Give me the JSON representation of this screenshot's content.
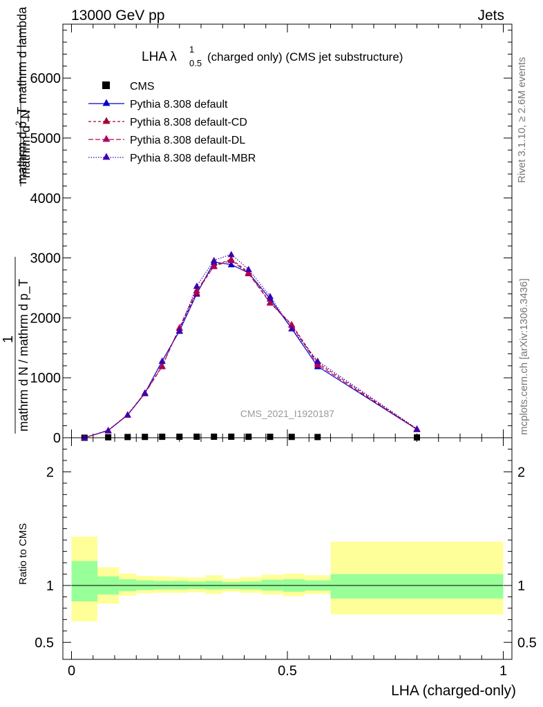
{
  "header": {
    "left": "13000 GeV pp",
    "right": "Jets"
  },
  "side": {
    "rivet": "Rivet 3.1.10, ≥ 2.6M events",
    "mcplots": "mcplots.cern.ch [arXiv:1306.3436]"
  },
  "plot_title": {
    "main": "LHA λ",
    "sup": "1",
    "sub": "0.5",
    "rest": "(charged only) (CMS jet substructure)"
  },
  "watermark": "CMS_2021_I1920187",
  "ylabel_main": {
    "num_line1": "mathrm d",
    "num_sup": "2",
    "num_line1b": "N",
    "num_line2": "mathrm d p_T mathrm d lambda",
    "one": "1",
    "den": "mathrm d N / mathrm d p_T"
  },
  "ylabel_ratio": "Ratio to CMS",
  "xlabel": "LHA (charged-only)",
  "legend": [
    {
      "label": "CMS",
      "marker": "square",
      "color": "#000000",
      "dash": ""
    },
    {
      "label": "Pythia 8.308 default",
      "marker": "triangle",
      "color": "#0000cc",
      "dash": ""
    },
    {
      "label": "Pythia 8.308 default-CD",
      "marker": "triangle",
      "color": "#a3002f",
      "dash": "4,3"
    },
    {
      "label": "Pythia 8.308 default-DL",
      "marker": "triangle",
      "color": "#b0005a",
      "dash": "7,3"
    },
    {
      "label": "Pythia 8.308 default-MBR",
      "marker": "triangle",
      "color": "#3c00b0",
      "dash": "1.5,2"
    }
  ],
  "chart_data": [
    {
      "type": "line",
      "panel": "main",
      "xlim": [
        -0.02,
        1.02
      ],
      "ylim": [
        0,
        6900
      ],
      "yticks": [
        0,
        1000,
        2000,
        3000,
        4000,
        5000,
        6000
      ],
      "ytick_labels": [
        "0",
        "1000",
        "2000",
        "3000",
        "4000",
        "5000",
        "6000"
      ],
      "x": [
        0.03,
        0.085,
        0.13,
        0.17,
        0.21,
        0.25,
        0.29,
        0.33,
        0.37,
        0.41,
        0.46,
        0.51,
        0.57,
        0.8
      ],
      "x_edges": [
        0.0,
        0.06,
        0.11,
        0.15,
        0.19,
        0.23,
        0.27,
        0.31,
        0.35,
        0.39,
        0.44,
        0.49,
        0.54,
        0.6,
        1.0
      ],
      "series": [
        {
          "name": "CMS",
          "values": [
            0,
            8,
            12,
            14,
            16,
            16,
            17,
            17,
            17,
            16,
            15,
            14,
            12,
            5
          ]
        },
        {
          "name": "Pythia 8.308 default",
          "values": [
            0,
            120,
            380,
            740,
            1280,
            1780,
            2400,
            2930,
            2890,
            2750,
            2320,
            1820,
            1190,
            140
          ]
        },
        {
          "name": "Pythia 8.308 default-CD",
          "values": [
            0,
            125,
            385,
            750,
            1200,
            1830,
            2420,
            2870,
            2980,
            2760,
            2260,
            1890,
            1250,
            145
          ]
        },
        {
          "name": "Pythia 8.308 default-DL",
          "values": [
            0,
            120,
            380,
            740,
            1190,
            1840,
            2460,
            2860,
            2960,
            2740,
            2250,
            1880,
            1220,
            140
          ]
        },
        {
          "name": "Pythia 8.308 default-MBR",
          "values": [
            0,
            125,
            385,
            750,
            1280,
            1790,
            2530,
            2960,
            3060,
            2810,
            2360,
            1820,
            1280,
            150
          ]
        }
      ]
    },
    {
      "type": "area",
      "panel": "ratio",
      "xlim": [
        -0.02,
        1.02
      ],
      "ylim": [
        0.35,
        2.3
      ],
      "yticks": [
        0.5,
        1,
        2
      ],
      "ytick_labels": [
        "0.5",
        "1",
        "2"
      ],
      "xticks": [
        0,
        0.5,
        1
      ],
      "xtick_labels": [
        "0",
        "0.5",
        "1"
      ],
      "x_edges": [
        0.0,
        0.06,
        0.11,
        0.15,
        0.19,
        0.23,
        0.27,
        0.31,
        0.35,
        0.39,
        0.44,
        0.49,
        0.54,
        0.6,
        1.0
      ],
      "band_inner_low": [
        0.86,
        0.92,
        0.95,
        0.96,
        0.965,
        0.965,
        0.97,
        0.965,
        0.97,
        0.965,
        0.955,
        0.945,
        0.955,
        0.885
      ],
      "band_inner_high": [
        1.215,
        1.08,
        1.055,
        1.045,
        1.04,
        1.04,
        1.035,
        1.04,
        1.03,
        1.035,
        1.05,
        1.055,
        1.045,
        1.1
      ],
      "band_outer_low": [
        0.685,
        0.84,
        0.91,
        0.93,
        0.935,
        0.935,
        0.94,
        0.925,
        0.945,
        0.935,
        0.92,
        0.905,
        0.925,
        0.745
      ],
      "band_outer_high": [
        1.43,
        1.16,
        1.105,
        1.085,
        1.08,
        1.075,
        1.07,
        1.09,
        1.06,
        1.075,
        1.095,
        1.105,
        1.09,
        1.385
      ],
      "reference": 1
    }
  ],
  "colors": {
    "inner_band": "#99ff99",
    "outer_band": "#ffff99",
    "axis": "#000000",
    "side_text": "#777777",
    "watermark": "#999999"
  }
}
